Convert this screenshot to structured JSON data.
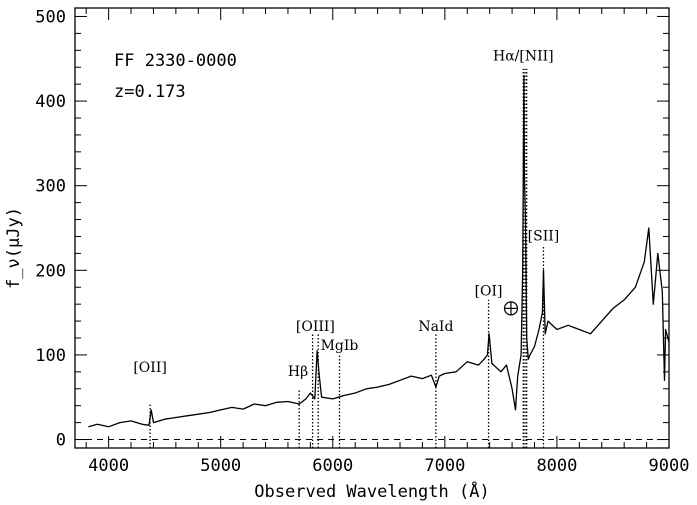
{
  "chart_data": {
    "type": "line",
    "xlabel": "Observed Wavelength (Å)",
    "ylabel": "f_ν(μJy)",
    "xlim": [
      3700,
      9000
    ],
    "ylim": [
      -10,
      510
    ],
    "xticks": [
      4000,
      5000,
      6000,
      7000,
      8000,
      9000
    ],
    "yticks": [
      0,
      100,
      200,
      300,
      400,
      500
    ],
    "annotations": {
      "object": "FF 2330-0000",
      "redshift": "z=0.173"
    },
    "zero_reference": {
      "style": "dashed",
      "y": 0
    },
    "series": [
      {
        "x": [
          3820,
          3900,
          4000,
          4100,
          4200,
          4300,
          4360,
          4380,
          4400,
          4500,
          4600,
          4700,
          4800,
          4900,
          5000,
          5100,
          5200,
          5300,
          5400,
          5500,
          5600,
          5700,
          5760,
          5800,
          5840,
          5860,
          5880,
          5900,
          6000,
          6100,
          6200,
          6300,
          6400,
          6500,
          6600,
          6700,
          6800,
          6880,
          6920,
          6950,
          7000,
          7100,
          7200,
          7300,
          7350,
          7380,
          7395,
          7420,
          7500,
          7550,
          7600,
          7630,
          7650,
          7680,
          7695,
          7705,
          7710,
          7720,
          7730,
          7745,
          7760,
          7800,
          7840,
          7870,
          7880,
          7895,
          7920,
          8000,
          8100,
          8200,
          8300,
          8400,
          8500,
          8600,
          8700,
          8780,
          8820,
          8860,
          8900,
          8940,
          8960,
          8970,
          9000
        ],
        "y": [
          15,
          18,
          15,
          20,
          22,
          18,
          17,
          35,
          20,
          24,
          26,
          28,
          30,
          32,
          35,
          38,
          36,
          42,
          40,
          44,
          45,
          42,
          48,
          55,
          48,
          105,
          75,
          50,
          48,
          52,
          55,
          60,
          62,
          65,
          70,
          75,
          72,
          76,
          62,
          75,
          78,
          80,
          92,
          88,
          95,
          100,
          125,
          90,
          80,
          88,
          60,
          35,
          75,
          100,
          200,
          430,
          310,
          260,
          120,
          95,
          100,
          110,
          130,
          150,
          200,
          125,
          140,
          130,
          135,
          130,
          125,
          140,
          155,
          165,
          180,
          210,
          250,
          160,
          220,
          175,
          70,
          130,
          115
        ]
      }
    ],
    "line_markers": [
      {
        "label": "[OII]",
        "x": 4370,
        "ymax": 42
      },
      {
        "label": "Hβ",
        "x": 5700,
        "ymax": 60
      },
      {
        "label": "[OIII]",
        "x": 5820,
        "ymax": 125
      },
      {
        "label": "[OIII]",
        "x": 5870,
        "ymax": 125
      },
      {
        "label": "MgIb",
        "x": 6060,
        "ymax": 100
      },
      {
        "label": "NaId",
        "x": 6920,
        "ymax": 125
      },
      {
        "label": "[OI]",
        "x": 7390,
        "ymax": 165
      },
      {
        "label": "Hα/[NII]",
        "x": 7700,
        "ymax": 438
      },
      {
        "label": "Hα/[NII]",
        "x": 7715,
        "ymax": 438
      },
      {
        "label": "Hα/[NII]",
        "x": 7730,
        "ymax": 438
      },
      {
        "label": "[SII]",
        "x": 7880,
        "ymax": 230
      }
    ],
    "line_labels": [
      {
        "text": "[OII]",
        "x": 4370,
        "y": 80
      },
      {
        "text": "Hβ",
        "x": 5690,
        "y": 75
      },
      {
        "text": "[OIII]",
        "x": 5845,
        "y": 128
      },
      {
        "text": "MgIb",
        "x": 6060,
        "y": 106
      },
      {
        "text": "NaId",
        "x": 6920,
        "y": 128
      },
      {
        "text": "[OI]",
        "x": 7390,
        "y": 170
      },
      {
        "text": "Hα/[NII]",
        "x": 7700,
        "y": 448
      },
      {
        "text": "[SII]",
        "x": 7880,
        "y": 235
      }
    ],
    "telluric": {
      "symbol": "⊕",
      "x": 7590,
      "y": 155
    }
  }
}
